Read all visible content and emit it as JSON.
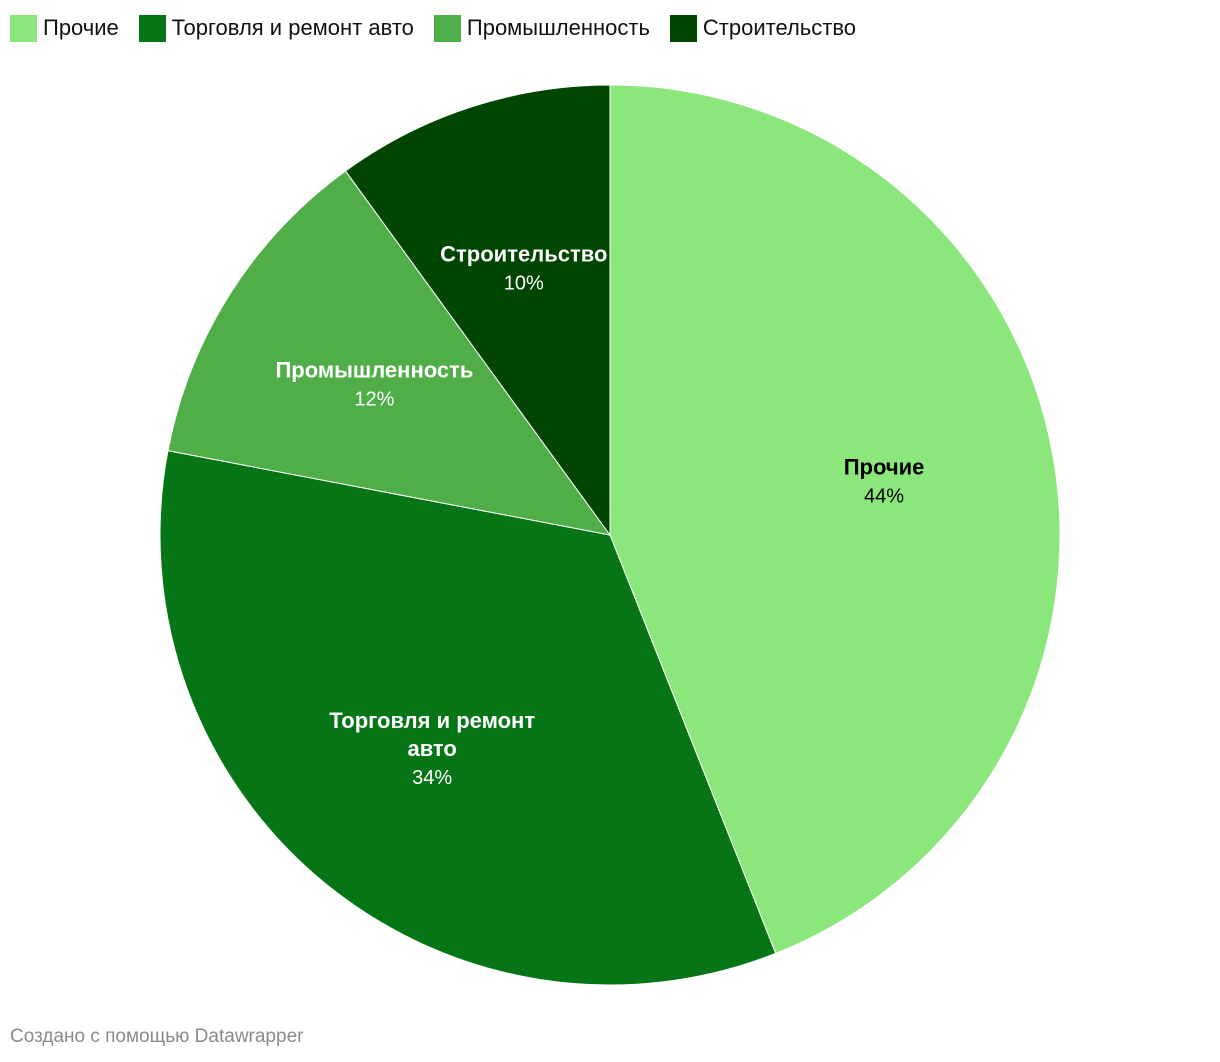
{
  "chart_data": {
    "type": "pie",
    "categories": [
      "Прочие",
      "Торговля и ремонт авто",
      "Промышленность",
      "Строительство"
    ],
    "values": [
      44,
      34,
      12,
      10
    ],
    "value_labels": [
      "44%",
      "34%",
      "12%",
      "10%"
    ],
    "label_lines": [
      [
        "Прочие"
      ],
      [
        "Торговля и ремонт",
        "авто"
      ],
      [
        "Промышленность"
      ],
      [
        "Строительство"
      ]
    ],
    "colors": [
      "#8be67b",
      "#057515",
      "#50ae49",
      "#004500"
    ],
    "label_colors": [
      "#000000",
      "#ffffff",
      "#ffffff",
      "#ffffff"
    ],
    "start": "12 o'clock",
    "direction": "clockwise",
    "legend_position": "top-left"
  },
  "legend": {
    "items": [
      {
        "label": "Прочие",
        "color": "#8be67b"
      },
      {
        "label": "Торговля и ремонт авто",
        "color": "#057515"
      },
      {
        "label": "Промышленность",
        "color": "#50ae49"
      },
      {
        "label": "Строительство",
        "color": "#004500"
      }
    ]
  },
  "footer": {
    "credit": "Создано с помощью Datawrapper"
  }
}
